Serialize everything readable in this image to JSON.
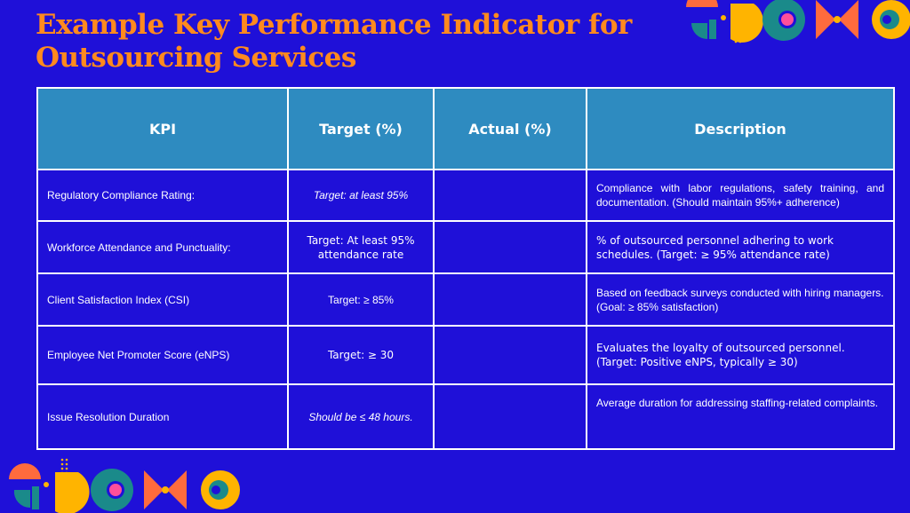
{
  "title": "Example Key Performance Indicator for Outsourcing Services",
  "table": {
    "headers": [
      "KPI",
      "Target (%)",
      "Actual (%)",
      "Description"
    ],
    "rows": [
      {
        "kpi": "Regulatory Compliance Rating:",
        "target": "Target: at least 95%",
        "actual": "",
        "description": "Compliance with labor regulations, safety training, and documentation. (Should maintain 95%+ adherence)"
      },
      {
        "kpi": "Workforce Attendance and Punctuality:",
        "target": "Target: At least 95% attendance rate",
        "actual": "",
        "description": "% of outsourced personnel adhering to work schedules. (Target: ≥ 95% attendance rate)"
      },
      {
        "kpi": "Client Satisfaction Index (CSI)",
        "target": "Target: ≥ 85%",
        "actual": "",
        "description": "Based on feedback surveys conducted with hiring managers. (Goal: ≥ 85% satisfaction)"
      },
      {
        "kpi": "Employee Net Promoter Score (eNPS)",
        "target": "Target: ≥ 30",
        "actual": "",
        "description": "Evaluates the loyalty of outsourced personnel. (Target: Positive eNPS, typically ≥ 30)"
      },
      {
        "kpi": "Issue Resolution Duration",
        "target": "Should be ≤ 48 hours.",
        "actual": "",
        "description": "Average duration for addressing staffing-related complaints."
      }
    ]
  },
  "colors": {
    "background": "#1f10d8",
    "title": "#ff8a1e",
    "header": "#2e8bc0",
    "teal": "#1a8a8a",
    "orange": "#ff6b3d",
    "yellow": "#ffb400",
    "pink": "#ff4f9a"
  }
}
